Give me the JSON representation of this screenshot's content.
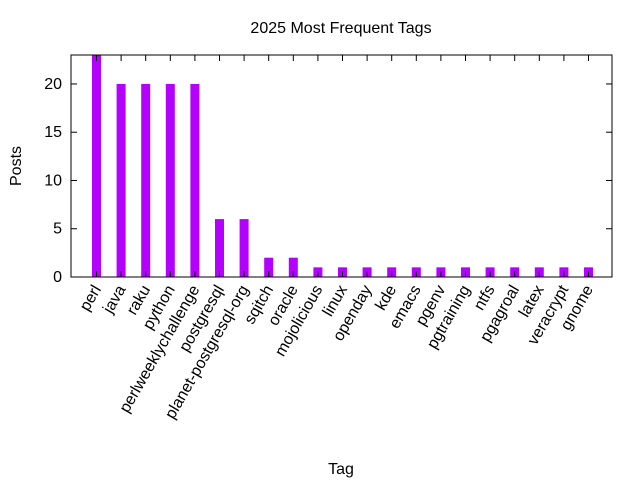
{
  "chart_data": {
    "type": "bar",
    "title": "2025 Most Frequent Tags",
    "xlabel": "Tag",
    "ylabel": "Posts",
    "ylim": [
      0,
      23
    ],
    "yticks": [
      0,
      5,
      10,
      15,
      20
    ],
    "grid": false,
    "legend": "none",
    "bar_color": "#b300ff",
    "categories": [
      "perl",
      "java",
      "raku",
      "python",
      "perlweeklychallenge",
      "postgresql",
      "planet-postgresql-org",
      "sqitch",
      "oracle",
      "mojolicious",
      "linux",
      "openday",
      "kde",
      "emacs",
      "pgenv",
      "pgtraining",
      "ntfs",
      "pgagroal",
      "latex",
      "veracrypt",
      "gnome"
    ],
    "values": [
      23,
      20,
      20,
      20,
      20,
      6,
      6,
      2,
      2,
      1,
      1,
      1,
      1,
      1,
      1,
      1,
      1,
      1,
      1,
      1,
      1
    ]
  }
}
